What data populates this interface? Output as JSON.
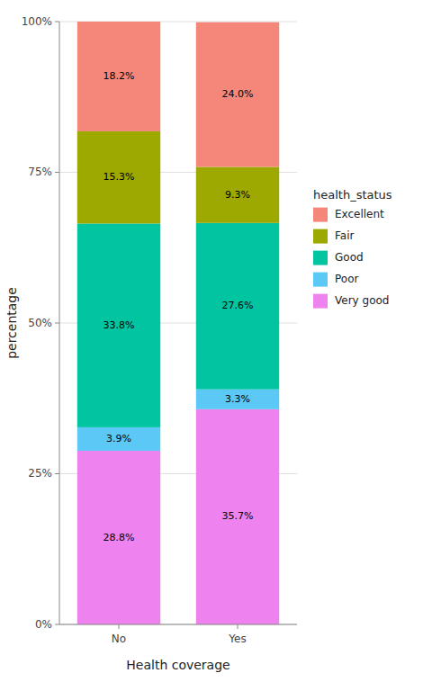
{
  "chart_data": {
    "type": "bar",
    "stacked": true,
    "categories": [
      "No",
      "Yes"
    ],
    "series": [
      {
        "name": "Very good",
        "color": "#EE82EE",
        "values": [
          28.8,
          35.7
        ],
        "value_labels": [
          "28.8%",
          "35.7%"
        ]
      },
      {
        "name": "Poor",
        "color": "#5BC8F5",
        "values": [
          3.9,
          3.3
        ],
        "value_labels": [
          "3.9%",
          "3.3%"
        ]
      },
      {
        "name": "Good",
        "color": "#00C5A0",
        "values": [
          33.8,
          27.6
        ],
        "value_labels": [
          "33.8%",
          "27.6%"
        ]
      },
      {
        "name": "Fair",
        "color": "#9DA800",
        "values": [
          15.3,
          9.3
        ],
        "value_labels": [
          "15.3%",
          "9.3%"
        ]
      },
      {
        "name": "Excellent",
        "color": "#F4877A",
        "values": [
          18.2,
          24.0
        ],
        "value_labels": [
          "18.2%",
          "24.0%"
        ]
      }
    ],
    "xlabel": "Health coverage",
    "ylabel": "percentage",
    "legend_title": "health_status",
    "ylim": [
      0,
      100
    ],
    "yticks": [
      {
        "value": 0,
        "label": "0%"
      },
      {
        "value": 25,
        "label": "25%"
      },
      {
        "value": 50,
        "label": "50%"
      },
      {
        "value": 75,
        "label": "75%"
      },
      {
        "value": 100,
        "label": "100%"
      }
    ],
    "grid": true,
    "legend": "right",
    "data_labels": true
  }
}
